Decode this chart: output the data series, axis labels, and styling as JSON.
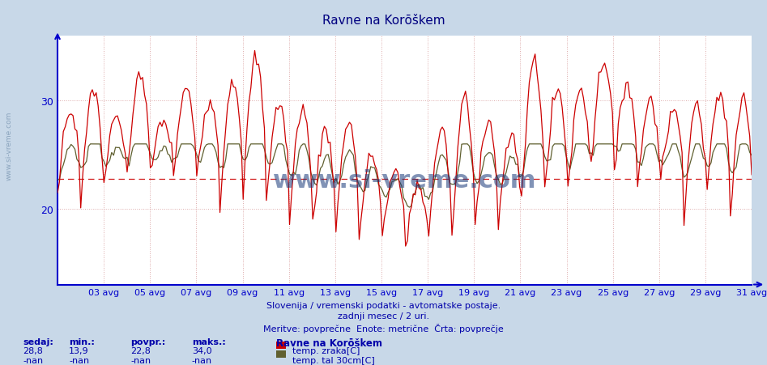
{
  "title": "Ravne na Korōškem",
  "subtitle1": "Slovenija / vremenski podatki - avtomatske postaje.",
  "subtitle2": "zadnji mesec / 2 uri.",
  "subtitle3": "Meritve: povprečne  Enote: metrične  Črta: povprečje",
  "bg_color": "#c8d8e8",
  "plot_bg_color": "#ffffff",
  "line1_color": "#cc0000",
  "line2_color": "#606030",
  "avg_line_color": "#cc0000",
  "avg_value": 22.8,
  "y_min": 13.0,
  "y_max": 36.0,
  "yticks": [
    20,
    30
  ],
  "title_color": "#000080",
  "axis_color": "#0000cc",
  "text_color": "#0000aa",
  "grid_color_h": "#ddaaaa",
  "grid_color_v": "#ddaaaa",
  "watermark_color": "#1a3a7a",
  "watermark": "www.si-vreme.com",
  "legend_title": "Ravne na Korōškem",
  "legend_items": [
    "temp. zraka[C]",
    "temp. tal 30cm[C]"
  ],
  "legend_color1": "#cc0000",
  "legend_color2": "#606030",
  "stats_labels": [
    "sedaj:",
    "min.:",
    "povpr.:",
    "maks.:"
  ],
  "stats_line1": [
    "28,8",
    "13,9",
    "22,8",
    "34,0"
  ],
  "stats_line2": [
    "-nan",
    "-nan",
    "-nan",
    "-nan"
  ],
  "n_points": 360,
  "days": 30,
  "x_tick_labels": [
    "03 avg",
    "05 avg",
    "07 avg",
    "09 avg",
    "11 avg",
    "13 avg",
    "15 avg",
    "17 avg",
    "19 avg",
    "21 avg",
    "23 avg",
    "25 avg",
    "27 avg",
    "29 avg",
    "31 avg"
  ],
  "x_tick_positions": [
    2,
    4,
    6,
    8,
    10,
    12,
    14,
    16,
    18,
    20,
    22,
    24,
    26,
    28,
    30
  ]
}
